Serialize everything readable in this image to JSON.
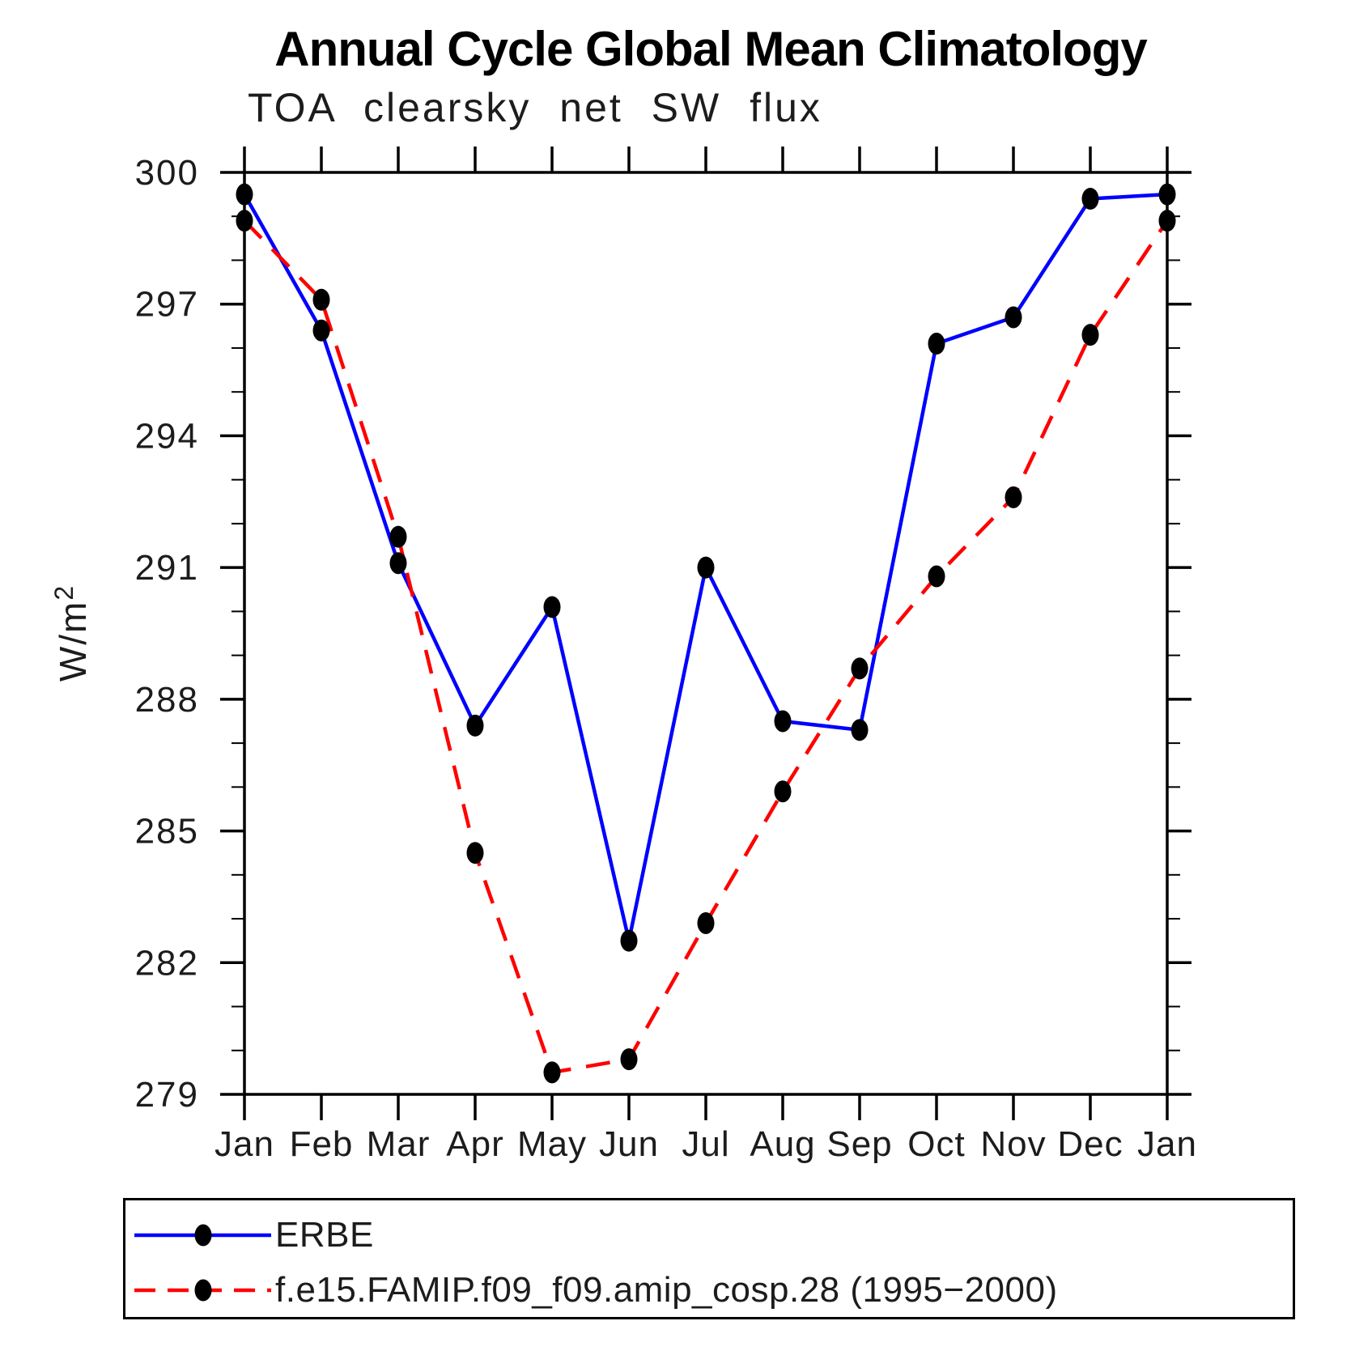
{
  "title": "Annual Cycle Global Mean Climatology",
  "subtitle": "TOA clearsky net SW flux",
  "ylabel": {
    "base": "W/m",
    "sup": "2"
  },
  "chart_data": {
    "type": "line",
    "title": "Annual Cycle Global Mean Climatology",
    "subtitle": "TOA clearsky net SW flux",
    "xlabel": "",
    "ylabel": "W/m^2",
    "categories": [
      "Jan",
      "Feb",
      "Mar",
      "Apr",
      "May",
      "Jun",
      "Jul",
      "Aug",
      "Sep",
      "Oct",
      "Nov",
      "Dec",
      "Jan"
    ],
    "ylim": [
      279,
      300
    ],
    "ytick_major_step": 3,
    "ytick_minor_step": 1,
    "ytick_labels": [
      "300",
      "297",
      "294",
      "291",
      "288",
      "285",
      "282",
      "279"
    ],
    "grid": false,
    "legend_position": "bottom-box",
    "axis_color": "#000000",
    "text_color": "#1c1c1c",
    "series": [
      {
        "name": "ERBE",
        "color": "#0000ff",
        "line_style": "solid",
        "marker": "filled-circle",
        "marker_color": "#000000",
        "values": [
          299.5,
          296.4,
          291.1,
          287.4,
          290.1,
          282.5,
          291.0,
          287.5,
          287.3,
          296.1,
          296.7,
          299.4,
          299.5
        ]
      },
      {
        "name": "f.e15.FAMIP.f09_f09.amip_cosp.28 (1995−2000)",
        "color": "#ff0000",
        "line_style": "dashed",
        "marker": "filled-circle",
        "marker_color": "#000000",
        "values": [
          298.9,
          297.1,
          291.7,
          284.5,
          279.5,
          279.8,
          282.9,
          285.9,
          288.7,
          290.8,
          292.6,
          296.3,
          298.9
        ]
      }
    ]
  }
}
